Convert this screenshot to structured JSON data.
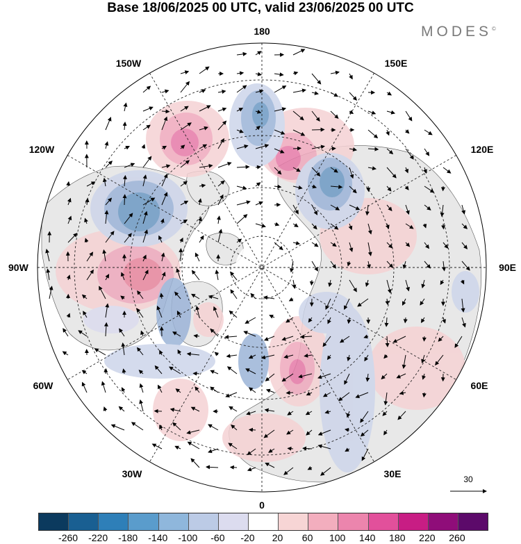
{
  "title": "Base 18/06/2025 00 UTC, valid 23/06/2025 00 UTC",
  "brand": "MODES",
  "brand_mark": "©",
  "longitude_labels": {
    "top": "180",
    "bottom": "0",
    "left": "90W",
    "right": "90E",
    "upper_left_1": "150W",
    "upper_left_2": "120W",
    "upper_right_1": "150E",
    "upper_right_2": "120E",
    "lower_left_1": "60W",
    "lower_left_2": "30W",
    "lower_right_1": "60E",
    "lower_right_2": "30E"
  },
  "wind_scale_label": "30",
  "colorbar": {
    "colors": [
      "#0b3a5e",
      "#195f92",
      "#2e7fb8",
      "#5a9ccc",
      "#8fb7dc",
      "#bccbe6",
      "#dcdcef",
      "#ffffff",
      "#f7d5d5",
      "#f3aebe",
      "#ec85ad",
      "#e2509b",
      "#c81d84",
      "#8f0d79",
      "#5c0a6a"
    ],
    "ticks": [
      "-260",
      "-220",
      "-180",
      "-140",
      "-100",
      "-60",
      "-20",
      "20",
      "60",
      "100",
      "140",
      "180",
      "220",
      "260"
    ]
  },
  "anomaly_colors": {
    "neg_strong": "#6d9ac4",
    "neg_mid": "#9cb4d8",
    "neg_weak": "#cdd5ea",
    "pos_weak": "#f5d2d4",
    "pos_mid": "#efa9bd",
    "pos_strong": "#e67aa8",
    "land": "#e8e8e8",
    "ocean": "#ffffff"
  }
}
